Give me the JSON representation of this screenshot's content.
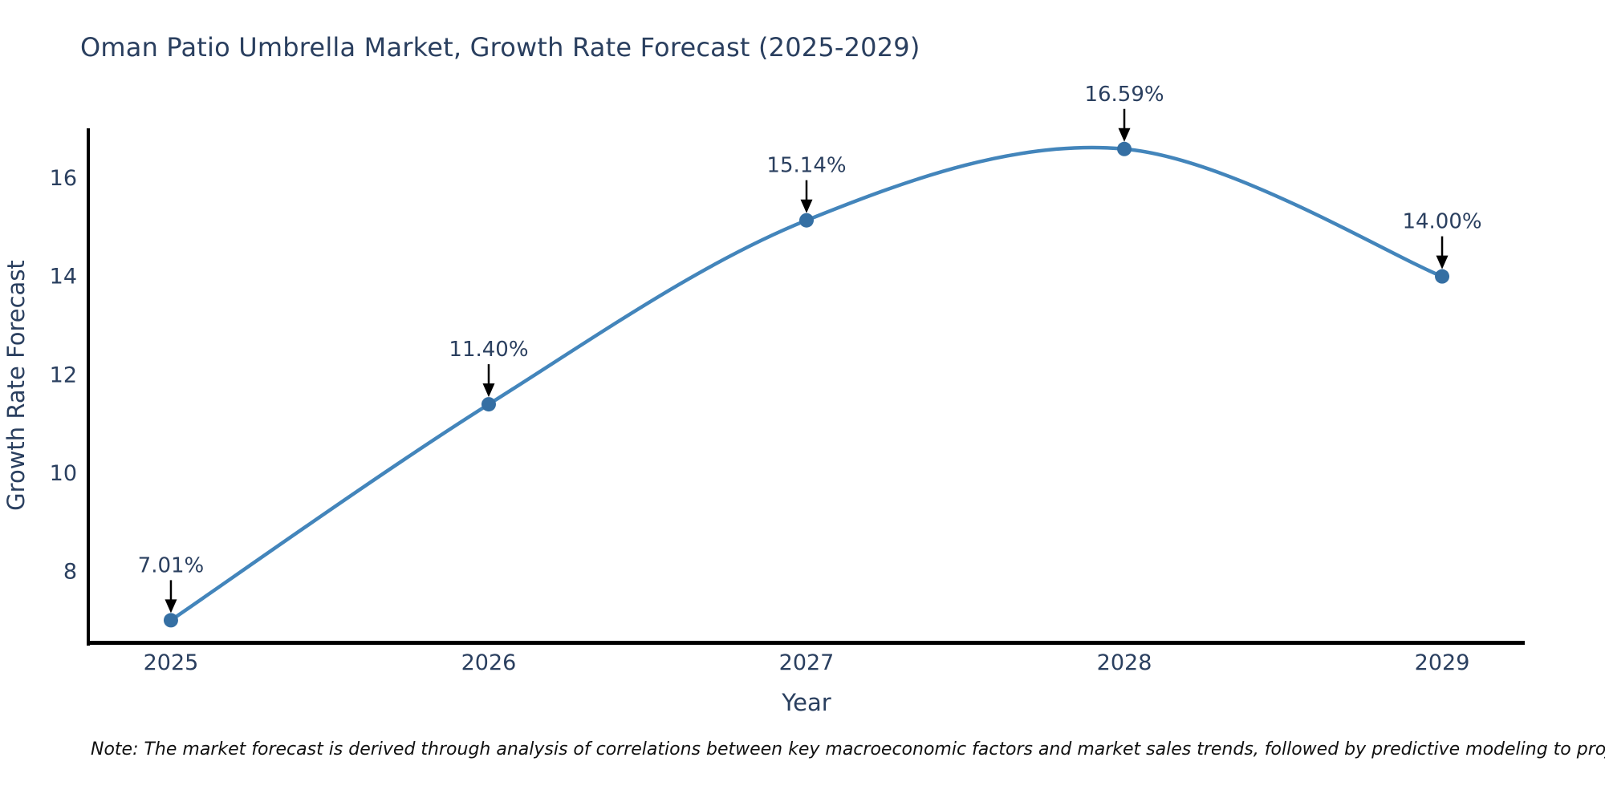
{
  "title": "Oman Patio Umbrella Market, Growth Rate Forecast (2025-2029)",
  "note": "Note: The market forecast is derived through analysis of correlations between key macroeconomic factors and market sales trends, followed by predictive modeling to project future sales",
  "chart_data": {
    "type": "line",
    "title": "Oman Patio Umbrella Market, Growth Rate Forecast (2025-2029)",
    "xlabel": "Year",
    "ylabel": "Growth Rate Forecast",
    "x": [
      2025,
      2026,
      2027,
      2028,
      2029
    ],
    "values": [
      7.01,
      11.4,
      15.14,
      16.59,
      14.0
    ],
    "point_labels": [
      "7.01%",
      "11.40%",
      "15.14%",
      "16.59%",
      "14.00%"
    ],
    "xtick_labels": [
      "2025",
      "2026",
      "2027",
      "2028",
      "2029"
    ],
    "ytick_values": [
      8,
      10,
      12,
      14,
      16
    ],
    "ytick_labels": [
      "8",
      "10",
      "12",
      "14",
      "16"
    ],
    "xlim": [
      2024.74,
      2029.26
    ],
    "ylim": [
      6.56,
      17.01
    ],
    "line_shape": "spline",
    "grid": false,
    "legend": "none",
    "colors": {
      "line": "#4385bb",
      "marker": "#356fa3",
      "axis_line": "#000000",
      "tick_text": "#2a3f5f",
      "title_text": "#2a3f5f",
      "annotation_text": "#2a3f5f",
      "annotation_arrow": "#000000",
      "background": "#ffffff"
    }
  }
}
